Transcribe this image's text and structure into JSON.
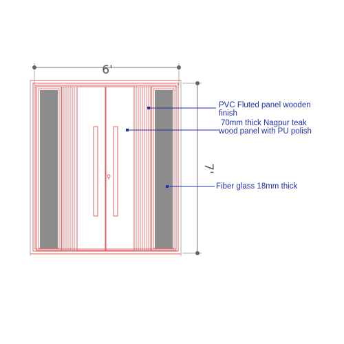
{
  "dimensions": {
    "width_label": "6'",
    "height_label": "7'"
  },
  "annotations": {
    "pvc_line1": "PVC  Fluted  panel  wooden",
    "pvc_line2": "finish",
    "teak_line1": "70mm thick Nagpur teak",
    "teak_line2": "wood panel with PU polish",
    "glass": "Fiber glass 18mm thick"
  },
  "colors": {
    "frame": "#e06060",
    "dimension": "#777777",
    "glass": "#8c8c8c",
    "leader": "#1f2fa8"
  }
}
